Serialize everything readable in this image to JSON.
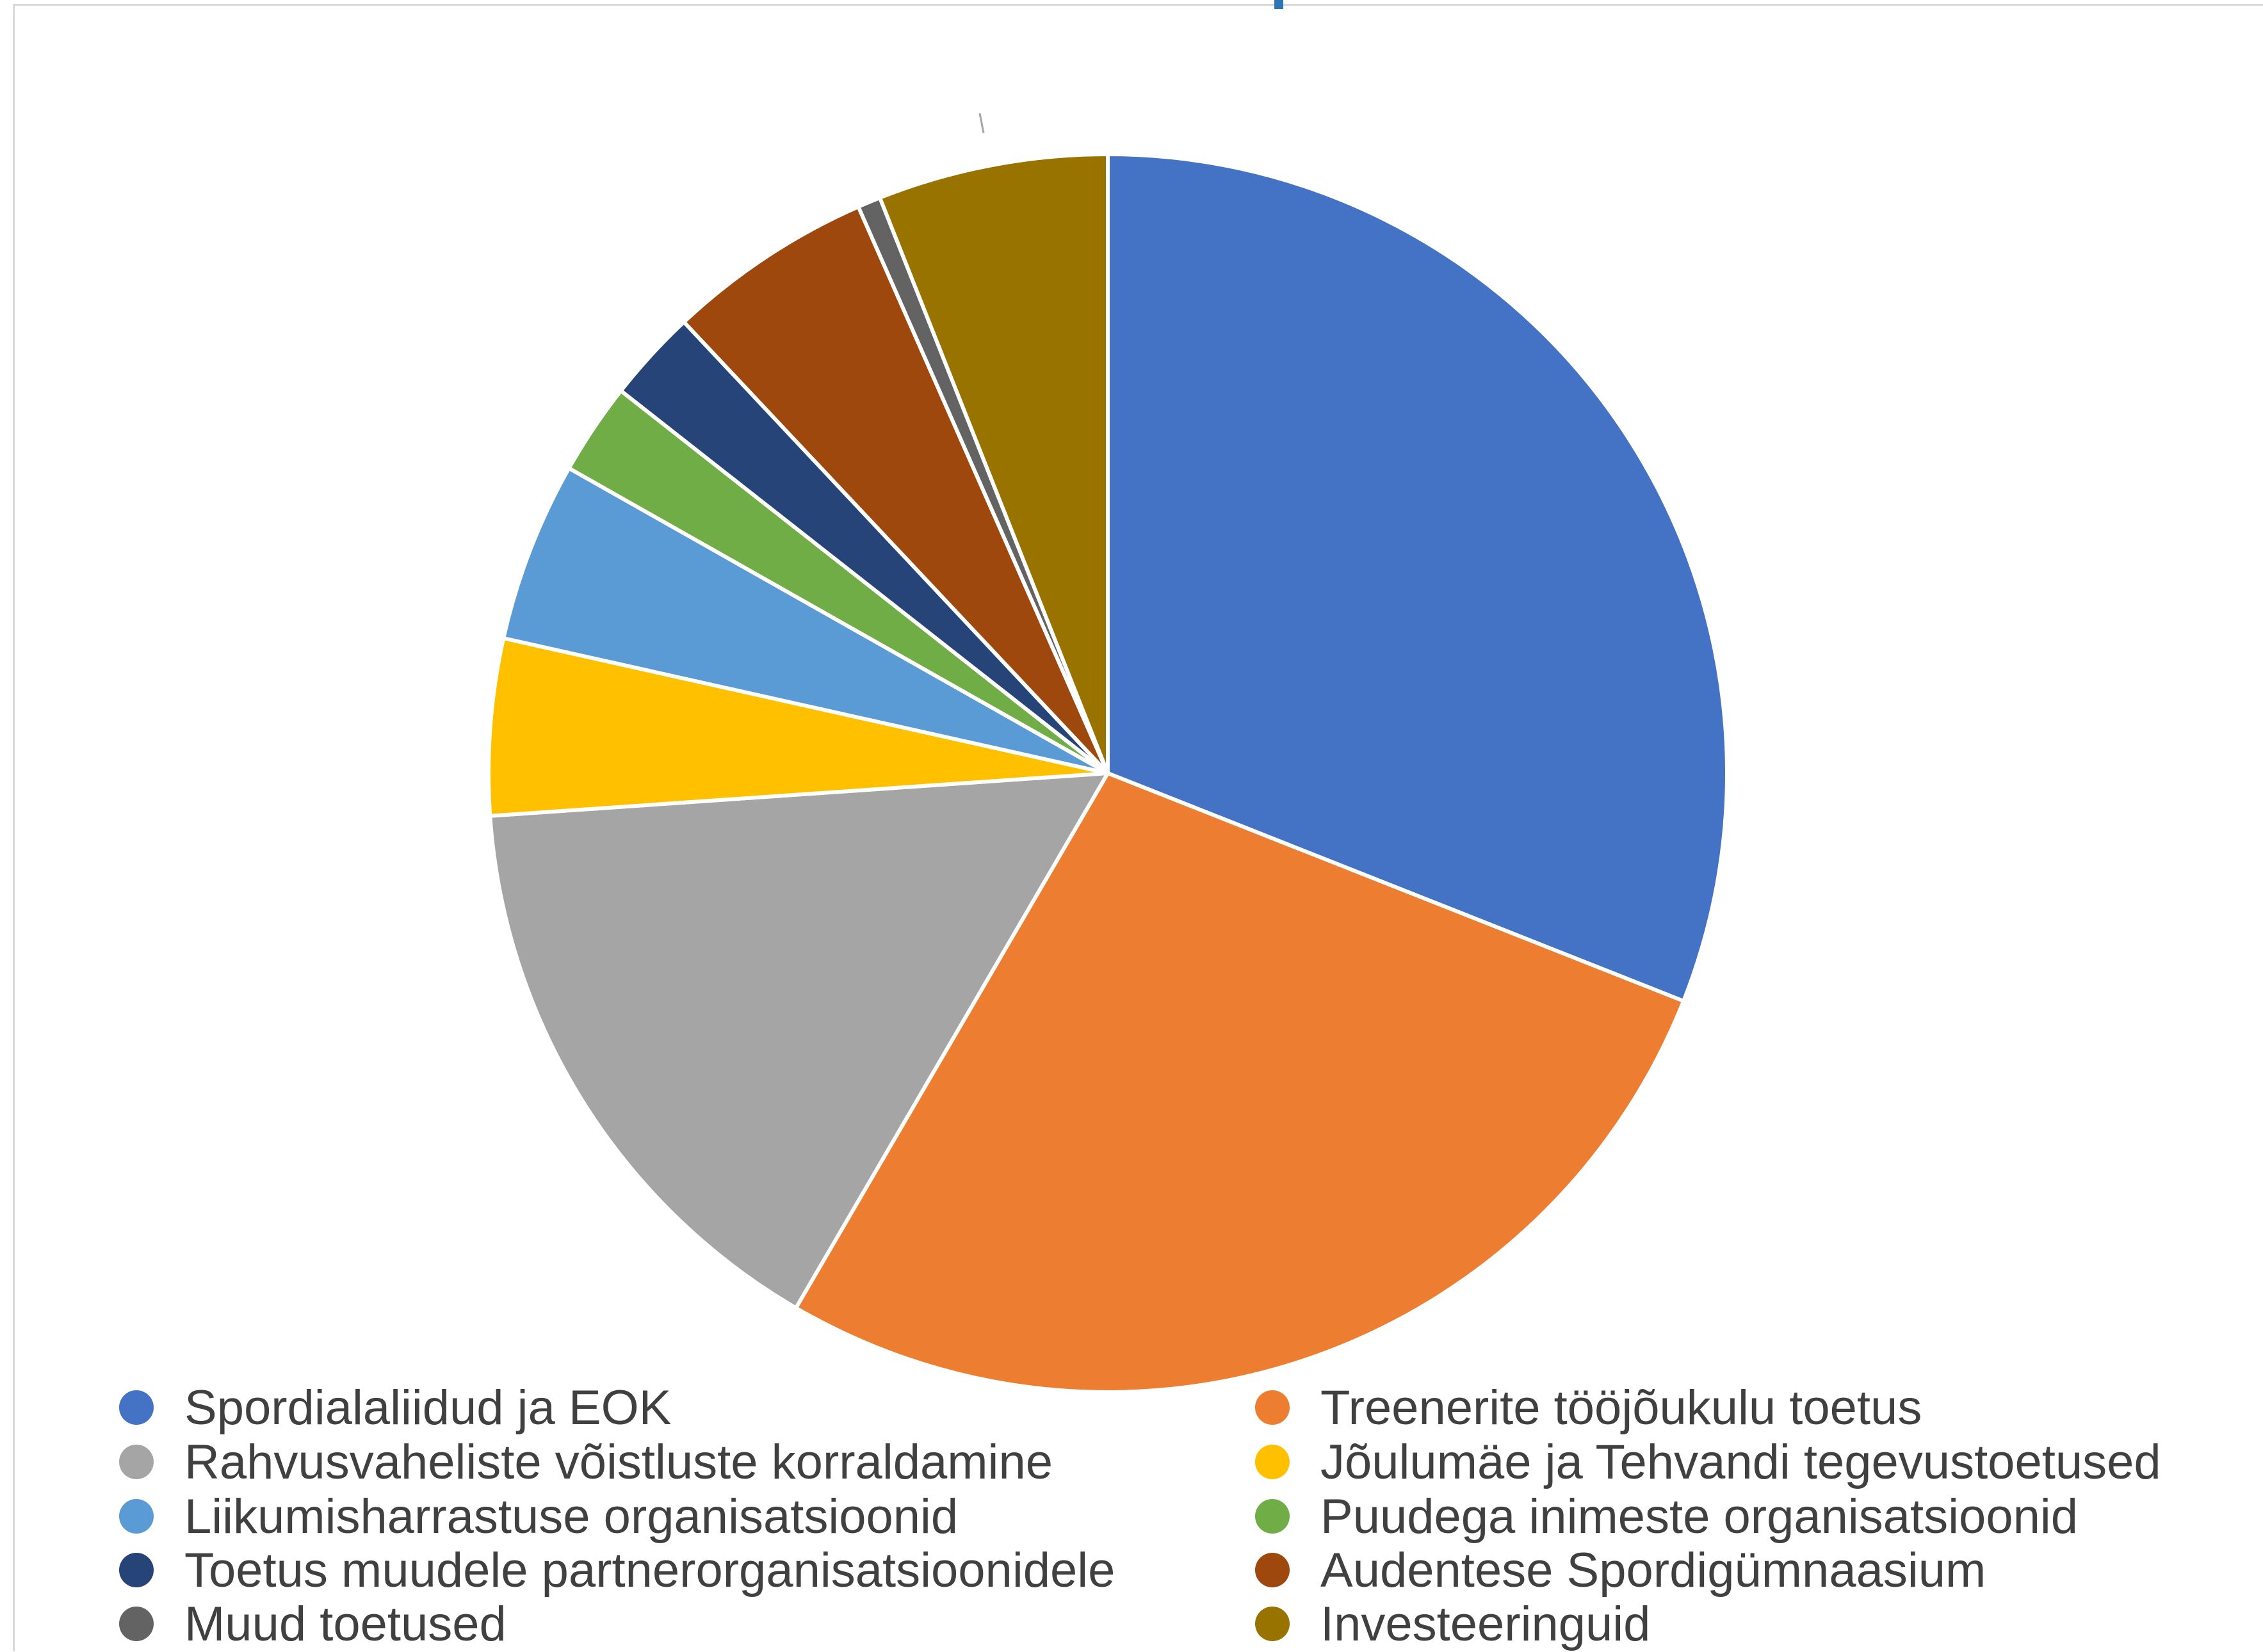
{
  "chart_data": {
    "type": "pie",
    "start_angle_deg": 0,
    "direction": "clockwise",
    "slices": [
      {
        "label": "Spordialaliidud ja EOK",
        "value": 31.0,
        "color": "#4472c4"
      },
      {
        "label": "Treenerite tööjõukulu toetus",
        "value": 27.4,
        "color": "#ed7d31"
      },
      {
        "label": "Rahvusvaheliste võistluste korraldamine",
        "value": 15.5,
        "color": "#a5a5a5"
      },
      {
        "label": "Jõulumäe ja Tehvandi tegevustoetused",
        "value": 4.6,
        "color": "#ffc000"
      },
      {
        "label": "Liikumisharrastuse organisatsioonid",
        "value": 4.7,
        "color": "#5b9bd5"
      },
      {
        "label": "Puudega inimeste organisatsioonid",
        "value": 2.4,
        "color": "#70ad47"
      },
      {
        "label": "Toetus muudele partnerorganisatsioonidele",
        "value": 2.4,
        "color": "#264478"
      },
      {
        "label": "Audentese Spordigümnaasium",
        "value": 5.4,
        "color": "#9e480e"
      },
      {
        "label": "Muud toetused",
        "value": 0.6,
        "color": "#636363"
      },
      {
        "label": "Investeeringuid",
        "value": 6.0,
        "color": "#997300"
      }
    ],
    "legend": {
      "placement": "bottom",
      "entries": [
        {
          "label": "Spordialaliidud ja EOK",
          "color": "#4472c4"
        },
        {
          "label": "Treenerite tööjõukulu toetus",
          "color": "#ed7d31"
        },
        {
          "label": "Rahvusvaheliste võistluste korraldamine",
          "color": "#a5a5a5"
        },
        {
          "label": "Jõulumäe ja Tehvandi tegevustoetused",
          "color": "#ffc000"
        },
        {
          "label": "Liikumisharrastuse organisatsioonid",
          "color": "#5b9bd5"
        },
        {
          "label": "Puudega inimeste organisatsioonid",
          "color": "#70ad47"
        },
        {
          "label": "Toetus muudele partnerorganisatsioonidele",
          "color": "#264478"
        },
        {
          "label": "Audentese Spordigümnaasium",
          "color": "#9e480e"
        },
        {
          "label": "Muud toetused",
          "color": "#636363"
        },
        {
          "label": "Investeeringuid",
          "color": "#997300"
        }
      ]
    }
  }
}
